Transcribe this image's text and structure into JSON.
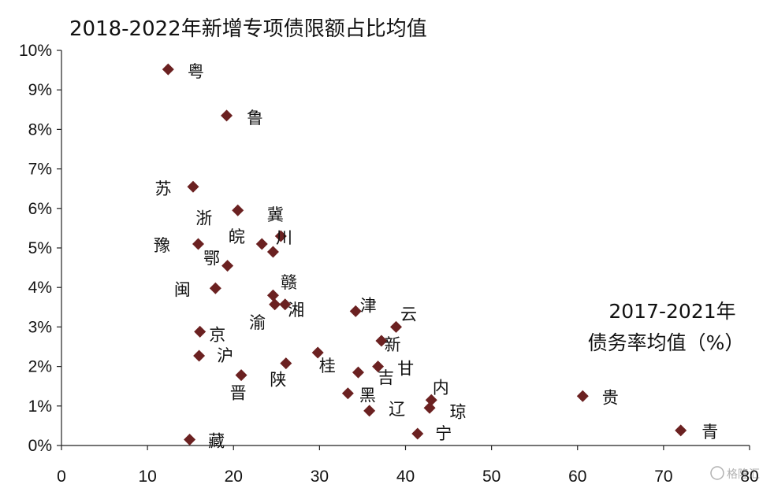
{
  "chart_data": {
    "type": "scatter",
    "title": "2018-2022年新增专项债限额占比均值",
    "x_note_line1": "2017-2021年",
    "x_note_line2": "债务率均值（%）",
    "xlim": [
      0,
      80
    ],
    "ylim": [
      0,
      10
    ],
    "x_ticks": [
      0,
      10,
      20,
      30,
      40,
      50,
      60,
      70,
      80
    ],
    "x_tick_labels": [
      "0",
      "10",
      "20",
      "30",
      "40",
      "50",
      "60",
      "70",
      "80"
    ],
    "y_ticks": [
      0,
      1,
      2,
      3,
      4,
      5,
      6,
      7,
      8,
      9,
      10
    ],
    "y_tick_labels": [
      "0%",
      "1%",
      "2%",
      "3%",
      "4%",
      "5%",
      "6%",
      "7%",
      "8%",
      "9%",
      "10%"
    ],
    "grid": false,
    "marker": "diamond",
    "marker_color": "#6b2121",
    "points": [
      {
        "label": "粤",
        "x": 12.4,
        "y": 9.52
      },
      {
        "label": "鲁",
        "x": 19.2,
        "y": 8.35
      },
      {
        "label": "苏",
        "x": 15.3,
        "y": 6.55
      },
      {
        "label": "浙",
        "x": 20.5,
        "y": 5.95
      },
      {
        "label": "冀",
        "x": 25.5,
        "y": 5.3
      },
      {
        "label": "皖",
        "x": 23.3,
        "y": 5.1
      },
      {
        "label": "豫",
        "x": 15.9,
        "y": 5.1
      },
      {
        "label": "川",
        "x": 24.6,
        "y": 4.9
      },
      {
        "label": "鄂",
        "x": 19.3,
        "y": 4.55
      },
      {
        "label": "闽",
        "x": 17.9,
        "y": 3.98
      },
      {
        "label": "赣",
        "x": 24.6,
        "y": 3.8
      },
      {
        "label": "渝",
        "x": 24.8,
        "y": 3.57
      },
      {
        "label": "湘",
        "x": 26.0,
        "y": 3.57
      },
      {
        "label": "津",
        "x": 34.2,
        "y": 3.4
      },
      {
        "label": "云",
        "x": 38.9,
        "y": 3.0
      },
      {
        "label": "京",
        "x": 16.1,
        "y": 2.88
      },
      {
        "label": "新",
        "x": 37.2,
        "y": 2.65
      },
      {
        "label": "沪",
        "x": 16.0,
        "y": 2.27
      },
      {
        "label": "桂",
        "x": 29.8,
        "y": 2.35
      },
      {
        "label": "陕",
        "x": 26.1,
        "y": 2.08
      },
      {
        "label": "甘",
        "x": 36.8,
        "y": 2.0
      },
      {
        "label": "吉",
        "x": 34.5,
        "y": 1.85
      },
      {
        "label": "晋",
        "x": 20.9,
        "y": 1.78
      },
      {
        "label": "黑",
        "x": 33.3,
        "y": 1.32
      },
      {
        "label": "内",
        "x": 43.0,
        "y": 1.15
      },
      {
        "label": "贵",
        "x": 60.6,
        "y": 1.25
      },
      {
        "label": "琼",
        "x": 42.8,
        "y": 0.95
      },
      {
        "label": "辽",
        "x": 35.8,
        "y": 0.88
      },
      {
        "label": "青",
        "x": 72.0,
        "y": 0.38
      },
      {
        "label": "宁",
        "x": 41.4,
        "y": 0.3
      },
      {
        "label": "藏",
        "x": 14.9,
        "y": 0.15
      }
    ]
  },
  "watermark": "格隆汇"
}
